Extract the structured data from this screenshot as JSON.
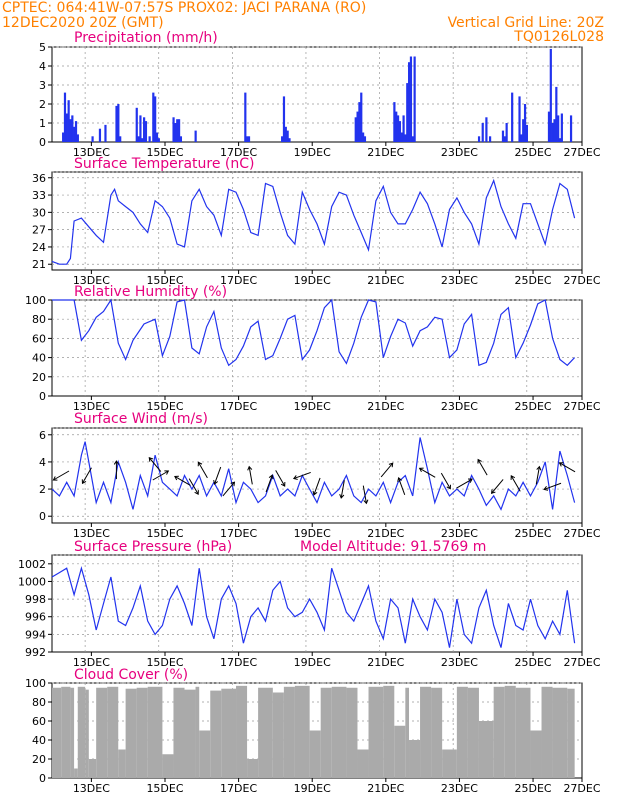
{
  "header": {
    "line1_left": "CPTEC:  064:41W-07:57S  PROX02: JACI PARANA (RO)",
    "line2_left": "12DEC2020 20Z (GMT)",
    "line2_right": "Vertical Grid Line: 20Z",
    "line3_right": "TQ0126L028"
  },
  "colors": {
    "header_text": "#ff8000",
    "panel_title": "#e6007e",
    "series_line": "#2233ee",
    "cloud_fill": "#aaaaaa",
    "grid": "#999999"
  },
  "chart_data": [
    {
      "type": "bar",
      "title": "Precipitation (mm/h)",
      "ylim": [
        0,
        5
      ],
      "yticks": [
        "0",
        "1",
        "2",
        "3",
        "4",
        "5"
      ],
      "x": [
        0.3,
        0.35,
        0.4,
        0.45,
        0.5,
        0.55,
        0.6,
        0.65,
        0.7,
        1.1,
        1.3,
        1.45,
        1.75,
        1.8,
        1.85,
        2.3,
        2.35,
        2.4,
        2.45,
        2.5,
        2.55,
        2.65,
        2.75,
        2.8,
        2.85,
        2.9,
        3.3,
        3.35,
        3.4,
        3.45,
        3.5,
        3.9,
        5.25,
        5.3,
        5.35,
        6.25,
        6.3,
        6.35,
        6.4,
        6.45,
        8.25,
        8.3,
        8.35,
        8.4,
        8.45,
        8.5,
        9.3,
        9.35,
        9.4,
        9.45,
        9.5,
        9.55,
        9.6,
        9.65,
        9.7,
        9.75,
        9.8,
        9.85,
        11.6,
        11.7,
        11.8,
        11.9,
        12.25,
        12.3,
        12.35,
        12.5,
        12.7,
        12.75,
        12.8,
        12.85,
        12.9,
        13.5,
        13.55,
        13.6,
        13.65,
        13.7,
        13.75,
        13.8,
        13.85,
        14.1
      ],
      "values": [
        0.5,
        2.6,
        1.5,
        2.2,
        1.2,
        1.4,
        0.8,
        1.1,
        0.4,
        0.3,
        0.7,
        0.9,
        1.9,
        2.0,
        0.3,
        1.8,
        0.3,
        1.4,
        0.2,
        1.3,
        1.1,
        0.3,
        2.6,
        2.4,
        0.5,
        0.2,
        1.3,
        1.0,
        1.2,
        1.2,
        0.3,
        0.6,
        2.6,
        0.3,
        0.3,
        0.3,
        2.4,
        0.8,
        0.6,
        0.2,
        1.3,
        1.6,
        2.1,
        2.6,
        0.5,
        0.3,
        2.1,
        1.6,
        1.4,
        1.1,
        0.5,
        1.4,
        0.4,
        3.1,
        4.2,
        4.5,
        0.3,
        4.5,
        0.3,
        1.0,
        1.3,
        0.3,
        0.6,
        0.3,
        1.0,
        2.6,
        2.4,
        0.4,
        1.2,
        2.0,
        0.9,
        1.6,
        4.9,
        1.0,
        1.2,
        2.9,
        1.4,
        0.2,
        1.5,
        1.4
      ]
    },
    {
      "type": "line",
      "title": "Surface Temperature (nC)",
      "ylim": [
        20,
        37
      ],
      "yticks": [
        "21",
        "24",
        "27",
        "30",
        "33",
        "36"
      ],
      "x": [
        0,
        0.2,
        0.4,
        0.5,
        0.6,
        0.8,
        1.0,
        1.2,
        1.4,
        1.6,
        1.7,
        1.8,
        2.0,
        2.2,
        2.4,
        2.6,
        2.8,
        3.0,
        3.2,
        3.4,
        3.6,
        3.8,
        4.0,
        4.2,
        4.4,
        4.6,
        4.8,
        5.0,
        5.2,
        5.4,
        5.6,
        5.8,
        6.0,
        6.2,
        6.4,
        6.6,
        6.8,
        7.0,
        7.2,
        7.4,
        7.6,
        7.8,
        8.0,
        8.2,
        8.4,
        8.6,
        8.8,
        9.0,
        9.2,
        9.4,
        9.6,
        9.8,
        10.0,
        10.2,
        10.4,
        10.6,
        10.8,
        11.0,
        11.2,
        11.4,
        11.6,
        11.8,
        12.0,
        12.2,
        12.4,
        12.6,
        12.8,
        13.0,
        13.2,
        13.4,
        13.6,
        13.8,
        14.0,
        14.2
      ],
      "values": [
        21.5,
        21.0,
        21.0,
        22.0,
        28.5,
        29.0,
        27.5,
        26.0,
        24.8,
        33.0,
        34.0,
        32.0,
        31.0,
        30.0,
        28.0,
        26.5,
        32.0,
        31.0,
        29.0,
        24.5,
        24.0,
        32.0,
        34.0,
        31.0,
        29.5,
        26.0,
        34.0,
        33.5,
        30.5,
        26.5,
        26.0,
        35.0,
        34.5,
        30.0,
        26.0,
        24.5,
        33.5,
        30.5,
        28.0,
        24.5,
        31.0,
        33.5,
        33.0,
        29.5,
        26.5,
        23.5,
        32.0,
        34.5,
        30.0,
        28.0,
        28.0,
        30.5,
        33.5,
        31.5,
        28.0,
        24.0,
        30.5,
        32.5,
        30.0,
        28.0,
        24.5,
        32.5,
        35.5,
        31.0,
        28.0,
        25.5,
        31.5,
        31.5,
        28.0,
        24.5,
        30.5,
        35.0,
        34.0,
        29.0
      ]
    },
    {
      "type": "line",
      "title": "Relative Humidity (%)",
      "ylim": [
        0,
        100
      ],
      "yticks": [
        "0",
        "20",
        "40",
        "60",
        "80",
        "100"
      ],
      "x": [
        0,
        0.3,
        0.6,
        0.8,
        1.0,
        1.2,
        1.4,
        1.6,
        1.8,
        2.0,
        2.2,
        2.5,
        2.8,
        3.0,
        3.2,
        3.4,
        3.6,
        3.8,
        4.0,
        4.2,
        4.4,
        4.6,
        4.8,
        5.0,
        5.2,
        5.4,
        5.6,
        5.8,
        6.0,
        6.2,
        6.4,
        6.6,
        6.8,
        7.0,
        7.2,
        7.4,
        7.6,
        7.8,
        8.0,
        8.2,
        8.4,
        8.6,
        8.8,
        9.0,
        9.2,
        9.4,
        9.6,
        9.8,
        10.0,
        10.2,
        10.4,
        10.6,
        10.8,
        11.0,
        11.2,
        11.4,
        11.6,
        11.8,
        12.0,
        12.2,
        12.4,
        12.6,
        12.8,
        13.0,
        13.2,
        13.4,
        13.6,
        13.8,
        14.0,
        14.2
      ],
      "values": [
        100,
        100,
        100,
        58,
        68,
        82,
        88,
        100,
        55,
        38,
        58,
        75,
        80,
        42,
        62,
        98,
        100,
        50,
        44,
        72,
        88,
        50,
        32,
        38,
        52,
        72,
        78,
        38,
        42,
        60,
        80,
        84,
        38,
        48,
        68,
        92,
        100,
        46,
        34,
        55,
        82,
        100,
        98,
        40,
        62,
        80,
        76,
        52,
        68,
        72,
        82,
        80,
        40,
        48,
        75,
        85,
        32,
        35,
        55,
        85,
        92,
        40,
        55,
        74,
        96,
        100,
        60,
        38,
        32,
        40
      ]
    },
    {
      "type": "line",
      "title": "Surface Wind (m/s)",
      "ylim": [
        -0.5,
        6.5
      ],
      "yticks": [
        "0",
        "2",
        "4",
        "6"
      ],
      "x": [
        0,
        0.2,
        0.4,
        0.6,
        0.8,
        0.9,
        1.0,
        1.2,
        1.4,
        1.6,
        1.8,
        2.0,
        2.2,
        2.4,
        2.6,
        2.8,
        3.0,
        3.2,
        3.4,
        3.6,
        3.8,
        4.0,
        4.2,
        4.4,
        4.6,
        4.8,
        5.0,
        5.2,
        5.4,
        5.6,
        5.8,
        6.0,
        6.2,
        6.4,
        6.6,
        6.8,
        7.0,
        7.2,
        7.4,
        7.6,
        7.8,
        8.0,
        8.2,
        8.4,
        8.6,
        8.8,
        9.0,
        9.2,
        9.4,
        9.6,
        9.8,
        10.0,
        10.2,
        10.4,
        10.6,
        10.8,
        11.0,
        11.2,
        11.4,
        11.6,
        11.8,
        12.0,
        12.2,
        12.4,
        12.6,
        12.8,
        13.0,
        13.2,
        13.4,
        13.6,
        13.8,
        14.0,
        14.2
      ],
      "values": [
        2.0,
        1.5,
        2.5,
        1.5,
        4.5,
        5.5,
        4.0,
        1.0,
        2.5,
        1.0,
        4.0,
        2.5,
        0.5,
        3.0,
        1.5,
        4.5,
        2.5,
        2.0,
        1.5,
        3.0,
        2.0,
        3.0,
        1.5,
        2.5,
        1.5,
        3.5,
        1.0,
        2.5,
        2.0,
        1.0,
        1.5,
        3.0,
        1.5,
        2.0,
        1.5,
        3.0,
        2.0,
        1.0,
        2.5,
        1.5,
        2.0,
        3.0,
        1.5,
        1.0,
        2.0,
        1.5,
        2.5,
        1.0,
        2.5,
        3.0,
        1.5,
        5.8,
        3.5,
        1.0,
        2.5,
        1.5,
        2.0,
        1.5,
        3.0,
        2.0,
        0.8,
        1.5,
        0.5,
        2.0,
        1.5,
        2.5,
        1.5,
        2.5,
        4.0,
        0.5,
        4.8,
        3.0,
        1.0
      ]
    },
    {
      "type": "line",
      "title": "Surface Pressure (hPa)",
      "annotation": "Model Altitude: 91.5769 m",
      "ylim": [
        992,
        1003
      ],
      "yticks": [
        "992",
        "994",
        "996",
        "998",
        "1000",
        "1002"
      ],
      "x": [
        0,
        0.2,
        0.4,
        0.6,
        0.8,
        1.0,
        1.2,
        1.4,
        1.6,
        1.8,
        2.0,
        2.2,
        2.4,
        2.6,
        2.8,
        3.0,
        3.2,
        3.4,
        3.6,
        3.8,
        4.0,
        4.2,
        4.4,
        4.6,
        4.8,
        5.0,
        5.2,
        5.4,
        5.6,
        5.8,
        6.0,
        6.2,
        6.4,
        6.6,
        6.8,
        7.0,
        7.2,
        7.4,
        7.6,
        7.8,
        8.0,
        8.2,
        8.4,
        8.6,
        8.8,
        9.0,
        9.2,
        9.4,
        9.6,
        9.8,
        10.0,
        10.2,
        10.4,
        10.6,
        10.8,
        11.0,
        11.2,
        11.4,
        11.6,
        11.8,
        12.0,
        12.2,
        12.4,
        12.6,
        12.8,
        13.0,
        13.2,
        13.4,
        13.6,
        13.8,
        14.0,
        14.2
      ],
      "values": [
        1000.5,
        1001.0,
        1001.5,
        998.5,
        1001.5,
        998.5,
        994.5,
        997.5,
        1000.5,
        995.5,
        995.0,
        997.0,
        999.5,
        995.5,
        994.0,
        995.0,
        998.0,
        999.5,
        997.5,
        995.0,
        1001.5,
        996.0,
        993.5,
        998.0,
        999.5,
        997.5,
        993.0,
        996.0,
        997.0,
        995.5,
        999.0,
        1000.0,
        997.0,
        996.0,
        996.5,
        998.0,
        996.5,
        994.5,
        1001.5,
        999.0,
        996.5,
        995.5,
        997.5,
        999.5,
        995.5,
        993.5,
        998.0,
        997.0,
        993.0,
        998.0,
        996.0,
        994.5,
        998.0,
        996.5,
        992.5,
        998.0,
        994.0,
        993.0,
        997.0,
        999.0,
        995.0,
        992.5,
        997.5,
        995.0,
        994.5,
        998.0,
        995.0,
        993.5,
        995.5,
        994.0,
        999.0,
        993.0
      ]
    },
    {
      "type": "area",
      "title": "Cloud Cover (%)",
      "ylim": [
        0,
        100
      ],
      "yticks": [
        "0",
        "20",
        "40",
        "60",
        "80",
        "100"
      ],
      "x": [
        0,
        0.25,
        0.5,
        0.6,
        0.7,
        0.9,
        1.0,
        1.2,
        1.5,
        1.8,
        2.0,
        2.3,
        2.6,
        3.0,
        3.3,
        3.6,
        3.9,
        4.0,
        4.3,
        4.6,
        5.0,
        5.3,
        5.6,
        6.0,
        6.3,
        6.6,
        7.0,
        7.3,
        7.6,
        8.0,
        8.3,
        8.6,
        9.0,
        9.3,
        9.6,
        9.7,
        10.0,
        10.3,
        10.6,
        11.0,
        11.3,
        11.6,
        12.0,
        12.3,
        12.6,
        13.0,
        13.3,
        13.6,
        14.0,
        14.2
      ],
      "values": [
        95,
        96,
        95,
        10,
        96,
        93,
        20,
        95,
        96,
        30,
        94,
        95,
        96,
        25,
        95,
        93,
        96,
        50,
        92,
        94,
        97,
        20,
        95,
        90,
        96,
        97,
        50,
        95,
        96,
        95,
        30,
        96,
        97,
        55,
        95,
        40,
        96,
        95,
        30,
        96,
        95,
        60,
        96,
        97,
        95,
        50,
        96,
        95,
        94,
        96
      ]
    }
  ],
  "xaxis": {
    "tick_labels": [
      "13DEC",
      "15DEC",
      "17DEC",
      "19DEC",
      "21DEC",
      "23DEC",
      "25DEC",
      "27DEC"
    ]
  },
  "wind_barbs": [
    {
      "x": 0.25,
      "y": 3.0,
      "dir": 240
    },
    {
      "x": 0.95,
      "y": 3.0,
      "dir": 210
    },
    {
      "x": 1.75,
      "y": 3.4,
      "dir": 0
    },
    {
      "x": 2.8,
      "y": 3.8,
      "dir": 320
    },
    {
      "x": 2.95,
      "y": 3.0,
      "dir": 60
    },
    {
      "x": 3.55,
      "y": 2.6,
      "dir": 300
    },
    {
      "x": 3.85,
      "y": 2.2,
      "dir": 150
    },
    {
      "x": 4.1,
      "y": 3.4,
      "dir": 330
    },
    {
      "x": 4.5,
      "y": 3.0,
      "dir": 200
    },
    {
      "x": 4.8,
      "y": 2.0,
      "dir": 40
    },
    {
      "x": 5.4,
      "y": 3.0,
      "dir": 350
    },
    {
      "x": 5.9,
      "y": 2.4,
      "dir": 20
    },
    {
      "x": 6.2,
      "y": 2.8,
      "dir": 150
    },
    {
      "x": 6.8,
      "y": 3.0,
      "dir": 250
    },
    {
      "x": 7.2,
      "y": 2.2,
      "dir": 200
    },
    {
      "x": 7.9,
      "y": 2.0,
      "dir": 190
    },
    {
      "x": 8.5,
      "y": 1.6,
      "dir": 170
    },
    {
      "x": 9.1,
      "y": 3.4,
      "dir": 40
    },
    {
      "x": 9.5,
      "y": 2.2,
      "dir": 340
    },
    {
      "x": 10.2,
      "y": 3.2,
      "dir": 300
    },
    {
      "x": 10.7,
      "y": 2.6,
      "dir": 150
    },
    {
      "x": 11.2,
      "y": 2.4,
      "dir": 60
    },
    {
      "x": 11.7,
      "y": 3.6,
      "dir": 330
    },
    {
      "x": 12.1,
      "y": 2.2,
      "dir": 220
    },
    {
      "x": 12.6,
      "y": 2.4,
      "dir": 330
    },
    {
      "x": 13.2,
      "y": 3.0,
      "dir": 10
    },
    {
      "x": 13.6,
      "y": 2.2,
      "dir": 250
    },
    {
      "x": 14.0,
      "y": 3.6,
      "dir": 300
    }
  ]
}
